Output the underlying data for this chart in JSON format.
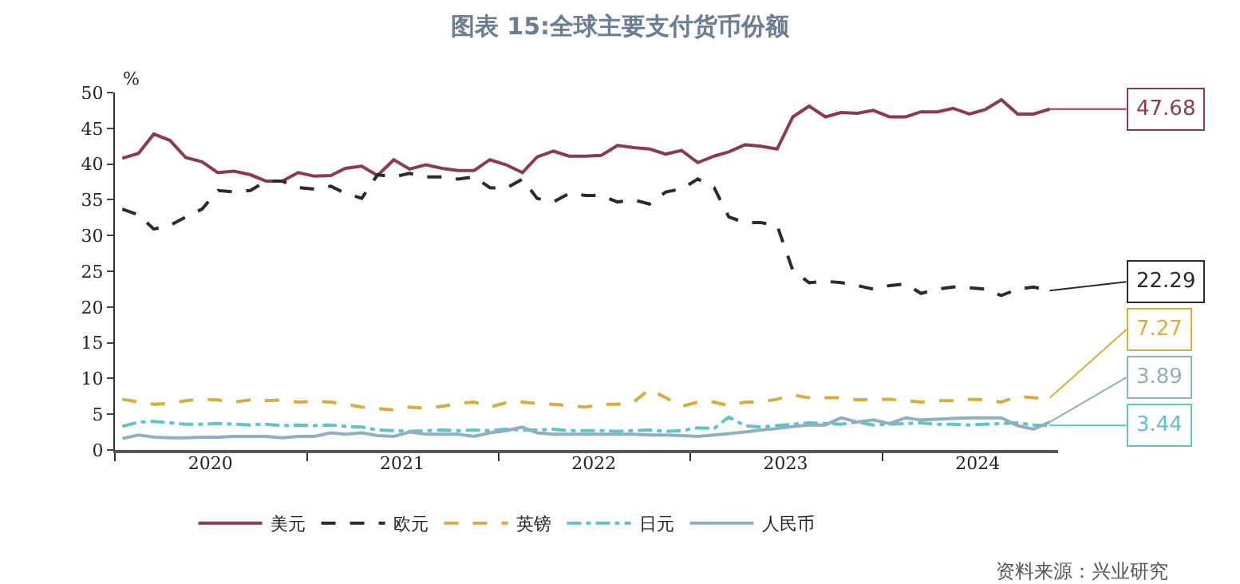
{
  "chart_data": {
    "type": "line",
    "title": "图表 15:全球主要支付货币份额",
    "ylabel": "%",
    "x": [
      "2020-01-15",
      "2020-02-15",
      "2020-03-15",
      "2020-04-15",
      "2020-05-15",
      "2020-06-15",
      "2020-07-15",
      "2020-08-15",
      "2020-09-15",
      "2020-10-15",
      "2020-11-15",
      "2020-12-15",
      "2021-01-15",
      "2021-02-15",
      "2021-03-15",
      "2021-04-15",
      "2021-05-15",
      "2021-06-15",
      "2021-07-15",
      "2021-08-15",
      "2021-09-15",
      "2021-10-15",
      "2021-11-15",
      "2021-12-15",
      "2022-01-15",
      "2022-02-15",
      "2022-03-15",
      "2022-04-15",
      "2022-05-15",
      "2022-06-15",
      "2022-07-15",
      "2022-08-15",
      "2022-09-15",
      "2022-10-15",
      "2022-11-15",
      "2022-12-15",
      "2023-01-15",
      "2023-02-15",
      "2023-03-15",
      "2023-04-15",
      "2023-05-15",
      "2023-06-15",
      "2023-07-15",
      "2023-08-15",
      "2023-09-15",
      "2023-10-15",
      "2023-11-15",
      "2023-12-15",
      "2024-01-15",
      "2024-02-15",
      "2024-03-15",
      "2024-04-15",
      "2024-05-15",
      "2024-06-15",
      "2024-07-15",
      "2024-08-15",
      "2024-09-15",
      "2024-10-15",
      "2024-11-15"
    ],
    "series": [
      {
        "name": "美元",
        "color": "#8b3a4f",
        "line_style": "solid",
        "values": [
          40.8,
          41.5,
          44.2,
          43.3,
          40.9,
          40.3,
          38.8,
          39.0,
          38.5,
          37.6,
          37.6,
          38.8,
          38.3,
          38.4,
          39.4,
          39.7,
          38.4,
          40.6,
          39.3,
          39.9,
          39.4,
          39.1,
          39.1,
          40.6,
          39.9,
          38.8,
          41.0,
          41.8,
          41.1,
          41.1,
          41.2,
          42.6,
          42.3,
          42.1,
          41.4,
          41.9,
          40.2,
          41.1,
          41.7,
          42.7,
          42.5,
          42.1,
          46.6,
          48.1,
          46.6,
          47.2,
          47.1,
          47.5,
          46.6,
          46.6,
          47.3,
          47.3,
          47.8,
          47.0,
          47.6,
          49.0,
          47.0,
          47.0,
          47.68
        ],
        "value_labels": [
          null,
          null,
          null,
          null,
          null,
          null,
          null,
          null,
          null,
          null,
          null,
          null,
          null,
          null,
          null,
          null,
          null,
          null,
          null,
          null,
          null,
          null,
          null,
          null,
          null,
          null,
          null,
          null,
          null,
          null,
          null,
          null,
          null,
          null,
          null,
          null,
          null,
          null,
          null,
          null,
          null,
          null,
          null,
          null,
          null,
          null,
          null,
          null,
          null,
          null,
          null,
          null,
          null,
          null,
          null,
          null,
          null,
          null,
          "47.68"
        ]
      },
      {
        "name": "欧元",
        "color": "#2b2b2b",
        "line_style": "dashed",
        "values": [
          33.7,
          32.9,
          30.9,
          31.4,
          32.6,
          33.7,
          36.3,
          36.1,
          36.3,
          37.6,
          37.6,
          36.7,
          36.5,
          36.9,
          35.9,
          35.2,
          38.5,
          38.2,
          38.7,
          38.2,
          38.2,
          37.9,
          38.2,
          36.7,
          36.6,
          37.9,
          35.2,
          34.7,
          35.9,
          35.6,
          35.6,
          34.7,
          35.0,
          34.4,
          36.1,
          36.5,
          37.9,
          36.7,
          32.6,
          31.8,
          31.8,
          31.4,
          25.1,
          23.4,
          23.6,
          23.4,
          23.0,
          22.5,
          23.0,
          23.2,
          21.9,
          22.5,
          22.8,
          22.7,
          22.5,
          21.6,
          22.5,
          22.8,
          22.29
        ],
        "value_labels": [
          null,
          null,
          null,
          null,
          null,
          null,
          null,
          null,
          null,
          null,
          null,
          null,
          null,
          null,
          null,
          null,
          null,
          null,
          null,
          null,
          null,
          null,
          null,
          null,
          null,
          null,
          null,
          null,
          null,
          null,
          null,
          null,
          null,
          null,
          null,
          null,
          null,
          null,
          null,
          null,
          null,
          null,
          null,
          null,
          null,
          null,
          null,
          null,
          null,
          null,
          null,
          null,
          null,
          null,
          null,
          null,
          null,
          null,
          "22.29"
        ]
      },
      {
        "name": "英镑",
        "color": "#d9ad3c",
        "line_style": "dashed",
        "values": [
          7.1,
          6.7,
          6.4,
          6.5,
          6.9,
          7.1,
          7.0,
          6.7,
          7.0,
          6.9,
          7.0,
          6.7,
          6.8,
          6.7,
          6.4,
          6.0,
          5.8,
          5.6,
          6.0,
          5.8,
          6.1,
          6.5,
          6.7,
          6.0,
          6.6,
          6.7,
          6.5,
          6.4,
          6.2,
          6.0,
          6.4,
          6.4,
          6.7,
          8.5,
          7.3,
          6.1,
          6.7,
          6.7,
          6.2,
          6.7,
          6.7,
          7.1,
          7.7,
          7.3,
          7.3,
          7.3,
          7.0,
          7.1,
          7.1,
          6.9,
          6.7,
          6.9,
          6.9,
          7.1,
          7.0,
          6.7,
          7.5,
          7.3,
          7.27
        ],
        "value_labels": [
          null,
          null,
          null,
          null,
          null,
          null,
          null,
          null,
          null,
          null,
          null,
          null,
          null,
          null,
          null,
          null,
          null,
          null,
          null,
          null,
          null,
          null,
          null,
          null,
          null,
          null,
          null,
          null,
          null,
          null,
          null,
          null,
          null,
          null,
          null,
          null,
          null,
          null,
          null,
          null,
          null,
          null,
          null,
          null,
          null,
          null,
          null,
          null,
          null,
          null,
          null,
          null,
          null,
          null,
          null,
          null,
          null,
          null,
          "7.27"
        ]
      },
      {
        "name": "日元",
        "color": "#5fc4c9",
        "line_style": "dashdot",
        "values": [
          3.3,
          3.9,
          4.0,
          3.8,
          3.6,
          3.6,
          3.7,
          3.6,
          3.5,
          3.6,
          3.4,
          3.5,
          3.4,
          3.5,
          3.3,
          3.2,
          2.8,
          2.7,
          2.6,
          2.7,
          2.8,
          2.7,
          2.8,
          2.7,
          2.9,
          2.8,
          2.8,
          2.9,
          2.7,
          2.7,
          2.7,
          2.6,
          2.7,
          2.8,
          2.6,
          2.7,
          3.1,
          3.0,
          4.6,
          3.4,
          3.2,
          3.4,
          3.6,
          3.8,
          3.7,
          3.6,
          3.9,
          3.5,
          3.6,
          3.7,
          3.8,
          3.6,
          3.6,
          3.5,
          3.6,
          3.7,
          3.8,
          3.5,
          3.44
        ],
        "value_labels": [
          null,
          null,
          null,
          null,
          null,
          null,
          null,
          null,
          null,
          null,
          null,
          null,
          null,
          null,
          null,
          null,
          null,
          null,
          null,
          null,
          null,
          null,
          null,
          null,
          null,
          null,
          null,
          null,
          null,
          null,
          null,
          null,
          null,
          null,
          null,
          null,
          null,
          null,
          null,
          null,
          null,
          null,
          null,
          null,
          null,
          null,
          null,
          null,
          null,
          null,
          null,
          null,
          null,
          null,
          null,
          null,
          null,
          null,
          "3.44"
        ]
      },
      {
        "name": "人民币",
        "color": "#8fb0c0",
        "line_style": "solid",
        "values": [
          1.6,
          2.1,
          1.8,
          1.7,
          1.7,
          1.8,
          1.8,
          1.9,
          1.9,
          1.9,
          1.7,
          1.9,
          1.9,
          2.4,
          2.2,
          2.4,
          2.0,
          1.9,
          2.5,
          2.2,
          2.2,
          2.2,
          1.9,
          2.4,
          2.7,
          3.2,
          2.4,
          2.2,
          2.2,
          2.2,
          2.2,
          2.2,
          2.2,
          2.1,
          2.1,
          2.0,
          1.9,
          2.1,
          2.3,
          2.5,
          2.8,
          3.0,
          3.3,
          3.5,
          3.5,
          4.5,
          3.9,
          4.2,
          3.7,
          4.5,
          4.2,
          4.3,
          4.4,
          4.5,
          4.5,
          4.5,
          3.4,
          2.9,
          3.89
        ],
        "value_labels": [
          null,
          null,
          null,
          null,
          null,
          null,
          null,
          null,
          null,
          null,
          null,
          null,
          null,
          null,
          null,
          null,
          null,
          null,
          null,
          null,
          null,
          null,
          null,
          null,
          null,
          null,
          null,
          null,
          null,
          null,
          null,
          null,
          null,
          null,
          null,
          null,
          null,
          null,
          null,
          null,
          null,
          null,
          null,
          null,
          null,
          null,
          null,
          null,
          null,
          null,
          null,
          null,
          null,
          null,
          null,
          null,
          null,
          null,
          "3.89"
        ]
      }
    ],
    "xlim": [
      "2020-01-01",
      "2024-12-01"
    ],
    "xticks": [
      {
        "value": "2020-01-01",
        "label": null
      },
      {
        "value": "2021-01-01",
        "label": null
      },
      {
        "value": "2022-01-01",
        "label": null
      },
      {
        "value": "2023-01-01",
        "label": null
      },
      {
        "value": "2024-01-01",
        "label": null
      },
      {
        "value": "2020-07-01",
        "label": "2020"
      },
      {
        "value": "2021-07-01",
        "label": "2021"
      },
      {
        "value": "2022-07-01",
        "label": "2022"
      },
      {
        "value": "2023-07-01",
        "label": "2023"
      },
      {
        "value": "2024-07-01",
        "label": "2024"
      }
    ],
    "ylim": [
      0,
      50
    ],
    "yticks": [
      0,
      5,
      10,
      15,
      20,
      25,
      30,
      35,
      40,
      45,
      50
    ],
    "legend": "bottom",
    "marker": "none",
    "annotations": [
      "资料来源：兴业研究"
    ]
  }
}
